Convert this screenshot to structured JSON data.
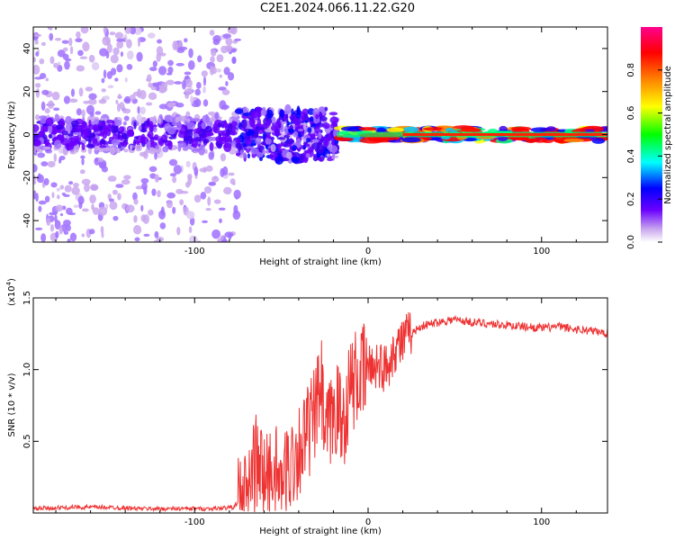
{
  "title": "C2E1.2024.066.11.22.G20",
  "colors": {
    "snr_line": "#ee3333",
    "frame": "#000000"
  },
  "chart_data": [
    {
      "type": "heatmap",
      "name": "spectrogram",
      "xlabel": "Height of straight line (km)",
      "ylabel": "Frequency (Hz)",
      "xlim": [
        -193,
        138
      ],
      "ylim": [
        -50,
        50
      ],
      "xticks": [
        -100,
        0,
        100
      ],
      "xtick_labels": [
        "-100",
        "0",
        "100"
      ],
      "yticks": [
        -40,
        -20,
        0,
        20,
        40
      ],
      "ytick_labels": [
        "-40",
        "-20",
        "0",
        "20",
        "40"
      ],
      "description_regions": [
        {
          "x": [
            -193,
            -75
          ],
          "freq": [
            -50,
            50
          ],
          "level": 0.2
        },
        {
          "x": [
            -75,
            -18
          ],
          "freq": [
            -12,
            12
          ],
          "level": 0.4
        },
        {
          "x": [
            -18,
            138
          ],
          "freq": [
            -3,
            3
          ],
          "level": 0.9
        }
      ],
      "colorbar": {
        "label": "Normalized spectral amplitude",
        "range": [
          0.0,
          1.0
        ],
        "ticks": [
          0.0,
          0.2,
          0.4,
          0.6,
          0.8
        ],
        "tick_labels": [
          "0.0",
          "0.2",
          "0.4",
          "0.6",
          "0.8"
        ]
      }
    },
    {
      "type": "line",
      "name": "snr",
      "xlabel": "Height of straight line (km)",
      "ylabel": "SNR (10 * v/v)",
      "scale_label": "(x10",
      "scale_exp": "4",
      "xlim": [
        -193,
        138
      ],
      "ylim": [
        0,
        1.5
      ],
      "xticks": [
        -100,
        0,
        100
      ],
      "xtick_labels": [
        "-100",
        "0",
        "100"
      ],
      "yticks": [
        0.5,
        1.0,
        1.5
      ],
      "ytick_labels": [
        "0.5",
        "1.0",
        "1.5"
      ],
      "series": [
        {
          "name": "SNR",
          "x": [
            -193,
            -170,
            -150,
            -130,
            -110,
            -90,
            -78,
            -70,
            -65,
            -60,
            -55,
            -50,
            -45,
            -40,
            -35,
            -30,
            -27,
            -25,
            -22,
            -18,
            -15,
            -10,
            -5,
            0,
            5,
            10,
            15,
            20,
            25,
            30,
            40,
            50,
            60,
            70,
            80,
            90,
            100,
            110,
            120,
            130,
            138
          ],
          "y": [
            0.03,
            0.04,
            0.04,
            0.03,
            0.03,
            0.03,
            0.04,
            0.12,
            0.35,
            0.25,
            0.3,
            0.2,
            0.35,
            0.45,
            0.55,
            0.7,
            0.9,
            0.5,
            0.6,
            0.75,
            0.6,
            0.9,
            0.95,
            1.0,
            1.05,
            1.0,
            1.15,
            1.2,
            1.25,
            1.3,
            1.33,
            1.35,
            1.33,
            1.32,
            1.31,
            1.3,
            1.29,
            1.3,
            1.28,
            1.27,
            1.25
          ]
        }
      ]
    }
  ]
}
